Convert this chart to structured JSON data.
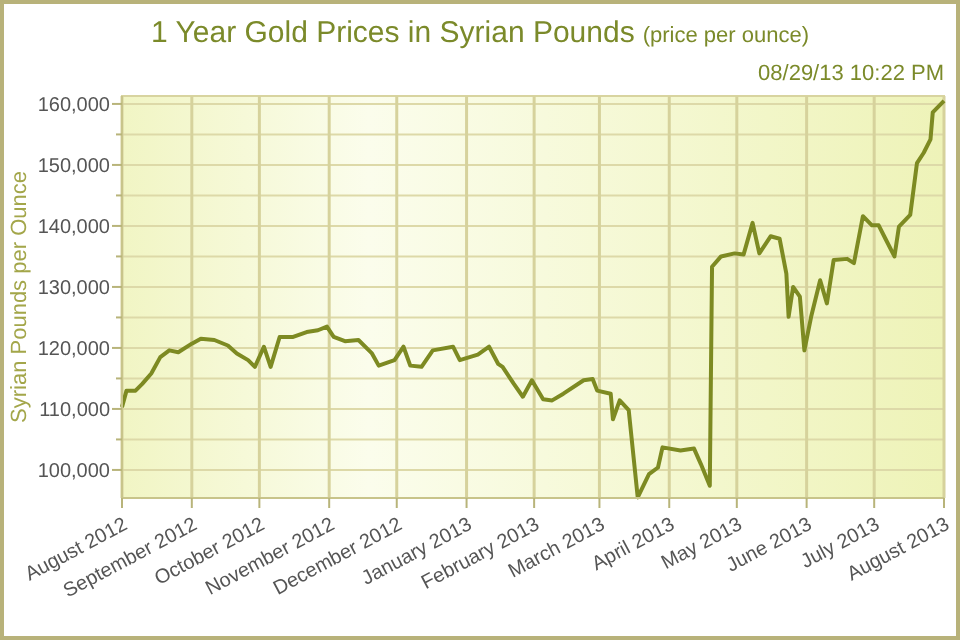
{
  "chart_data": {
    "type": "line",
    "title": "1 Year Gold Prices in Syrian Pounds",
    "subtitle": "(price per ounce)",
    "ylabel": "Syrian Pounds per Ounce",
    "annotations": [
      "08/29/13 10:22 PM"
    ],
    "xlim": [
      "2012-08-29",
      "2013-08-29"
    ],
    "xticks": [
      {
        "value": "2012-08-29",
        "label": "August 2012"
      },
      {
        "value": "2012-09-29",
        "label": "September 2012"
      },
      {
        "value": "2012-10-29",
        "label": "October 2012"
      },
      {
        "value": "2012-11-29",
        "label": "November 2012"
      },
      {
        "value": "2012-12-29",
        "label": "December 2012"
      },
      {
        "value": "2013-01-29",
        "label": "January 2013"
      },
      {
        "value": "2013-02-28",
        "label": "February 2013"
      },
      {
        "value": "2013-03-29",
        "label": "March 2013"
      },
      {
        "value": "2013-04-29",
        "label": "April 2013"
      },
      {
        "value": "2013-05-29",
        "label": "May 2013"
      },
      {
        "value": "2013-06-29",
        "label": "June 2013"
      },
      {
        "value": "2013-07-29",
        "label": "July 2013"
      },
      {
        "value": "2013-08-29",
        "label": "August 2013"
      }
    ],
    "ylim": [
      95400,
      161300
    ],
    "yticks": [
      {
        "value": 100000,
        "label": "100,000"
      },
      {
        "value": 105000,
        "label": null
      },
      {
        "value": 110000,
        "label": "110,000"
      },
      {
        "value": 115000,
        "label": null
      },
      {
        "value": 120000,
        "label": "120,000"
      },
      {
        "value": 125000,
        "label": null
      },
      {
        "value": 130000,
        "label": "130,000"
      },
      {
        "value": 135000,
        "label": null
      },
      {
        "value": 140000,
        "label": "140,000"
      },
      {
        "value": 145000,
        "label": null
      },
      {
        "value": 150000,
        "label": "150,000"
      },
      {
        "value": 155000,
        "label": null
      },
      {
        "value": 160000,
        "label": "160,000"
      }
    ],
    "grid": true,
    "line_style": "solid",
    "series": [
      {
        "color": "#7d8a22",
        "x": [
          "2012-08-29",
          "2012-08-31",
          "2012-09-04",
          "2012-09-07",
          "2012-09-11",
          "2012-09-15",
          "2012-09-19",
          "2012-09-23",
          "2012-09-29",
          "2012-10-03",
          "2012-10-09",
          "2012-10-15",
          "2012-10-19",
          "2012-10-24",
          "2012-10-27",
          "2012-10-31",
          "2012-11-03",
          "2012-11-07",
          "2012-11-13",
          "2012-11-19",
          "2012-11-24",
          "2012-11-28",
          "2012-12-01",
          "2012-12-06",
          "2012-12-12",
          "2012-12-18",
          "2012-12-21",
          "2012-12-28",
          "2013-01-01",
          "2013-01-04",
          "2013-01-09",
          "2013-01-14",
          "2013-01-23",
          "2013-01-26",
          "2013-02-03",
          "2013-02-08",
          "2013-02-12",
          "2013-02-14",
          "2013-02-19",
          "2013-02-23",
          "2013-02-27",
          "2013-03-04",
          "2013-03-08",
          "2013-03-13",
          "2013-03-22",
          "2013-03-26",
          "2013-03-28",
          "2013-04-03",
          "2013-04-04",
          "2013-04-07",
          "2013-04-11",
          "2013-04-15",
          "2013-04-20",
          "2013-04-24",
          "2013-04-26",
          "2013-05-04",
          "2013-05-10",
          "2013-05-13",
          "2013-05-17",
          "2013-05-18",
          "2013-05-22",
          "2013-05-28",
          "2013-06-01",
          "2013-06-05",
          "2013-06-08",
          "2013-06-13",
          "2013-06-17",
          "2013-06-20",
          "2013-06-21",
          "2013-06-23",
          "2013-06-26",
          "2013-06-28",
          "2013-07-01",
          "2013-07-05",
          "2013-07-08",
          "2013-07-11",
          "2013-07-17",
          "2013-07-20",
          "2013-07-24",
          "2013-07-28",
          "2013-07-31",
          "2013-08-03",
          "2013-08-07",
          "2013-08-09",
          "2013-08-14",
          "2013-08-17",
          "2013-08-20",
          "2013-08-23",
          "2013-08-24",
          "2013-08-29"
        ],
        "values": [
          110300,
          113000,
          113000,
          114100,
          115800,
          118500,
          119600,
          119300,
          120700,
          121500,
          121300,
          120400,
          119100,
          118000,
          116900,
          120200,
          116900,
          121800,
          121800,
          122600,
          122900,
          123500,
          121800,
          121100,
          121300,
          119100,
          117100,
          118000,
          120200,
          117100,
          116900,
          119600,
          120200,
          118000,
          118900,
          120200,
          117400,
          116900,
          114100,
          112000,
          114700,
          111600,
          111400,
          112500,
          114700,
          114900,
          113000,
          112500,
          108300,
          111400,
          109800,
          95500,
          99300,
          100400,
          103700,
          103200,
          103500,
          101000,
          97400,
          133300,
          135000,
          135500,
          135300,
          140500,
          135500,
          138300,
          137900,
          132200,
          125100,
          130000,
          128400,
          119600,
          125100,
          131100,
          127300,
          134400,
          134600,
          133900,
          141600,
          140100,
          140100,
          137900,
          135000,
          139900,
          141800,
          150300,
          152000,
          154200,
          158600,
          160500
        ]
      }
    ]
  }
}
